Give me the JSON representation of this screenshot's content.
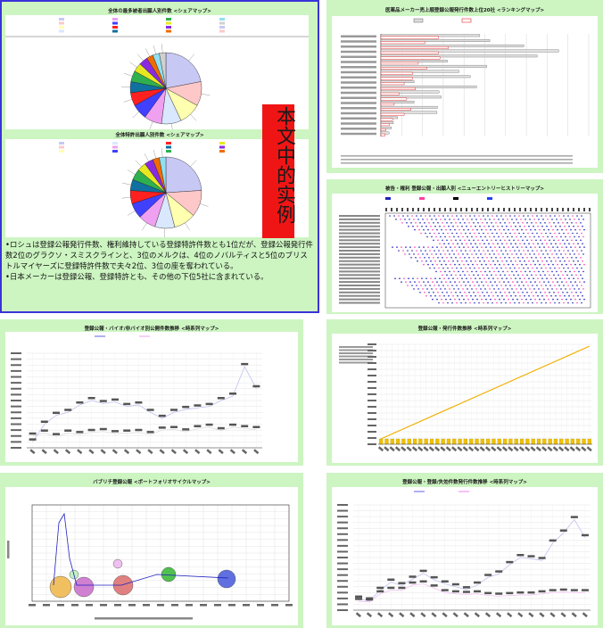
{
  "panels": {
    "p1": {
      "title1": "全体の最多被者出願人別件数 <シェアマップ>",
      "title2": "全体特許出願人別件数 <シェアマップ>",
      "overlay": "本文中的实例",
      "text": "•ロシュは登録公報発行件数、権利維持している登録特許件数とも1位だが、登録公報発行件数2位のグラクソ・スミスクラインと、3位のメルクは、4位のノバルティスと5位のブリストルマイヤーズに登録特許件数で夫々2位、3位の座を奪われている。\n•日本メーカーは登録公報、登録特許とも、その他の下位5社に含まれている。"
    },
    "p2": {
      "title": "医薬品メーカー売上順登録公報発行件数上位20社 <ランキングマップ>",
      "legend": [
        "合計",
        "権利維持"
      ]
    },
    "p3": {
      "title": "被告・権利 登録公報・出願人別 <ニューエントリーヒストリーマップ>"
    },
    "p4": {
      "title": "登録公報・バイオ/非バイオ別公開件数推移 <時系列マップ>",
      "legend": [
        "バイオ",
        "非バイオ"
      ],
      "ylabel": "件数",
      "xlabel": "発行年"
    },
    "p5": {
      "title": "登録公報・発行件数推移 <時系列マップ>"
    },
    "p6": {
      "title": "バブリチ登録公報 <ポートフォリオサイクルマップ>",
      "ylabel": "件数",
      "xlabel": "出願件数"
    },
    "p7": {
      "title": "登録公報・登録/失効件数発行件数推移 <時系列マップ>",
      "legend": [
        "全体",
        "失効件数"
      ]
    }
  },
  "chart_data": [
    {
      "type": "pie",
      "title": "全体の最多被者出願人別件数 <シェアマップ>",
      "values": [
        22,
        11,
        10,
        9,
        8,
        7,
        6,
        5,
        5,
        4,
        4,
        3,
        3,
        3
      ]
    },
    {
      "type": "pie",
      "title": "全体特許出願人別件数 <シェアマップ>",
      "values": [
        24,
        12,
        10,
        9,
        8,
        7,
        6,
        5,
        5,
        4,
        4,
        3,
        3
      ]
    },
    {
      "type": "bar",
      "title": "医薬品メーカー売上順登録公報発行件数上位20社 <ランキングマップ>",
      "series": [
        {
          "name": "合計",
          "values": [
            2380,
            2620,
            3440,
            4280,
            3760,
            1600,
            2550,
            1880,
            2150,
            800,
            2300,
            1400,
            1450,
            800,
            1360,
            1350,
            400,
            300,
            250,
            200
          ]
        },
        {
          "name": "権利維持",
          "values": [
            1390,
            1060,
            1620,
            1380,
            1420,
            900,
            1100,
            760,
            760,
            560,
            830,
            440,
            620,
            320,
            720,
            560,
            280,
            200,
            120,
            100
          ]
        }
      ],
      "xlim": [
        0,
        5000
      ]
    },
    {
      "type": "scatter",
      "title": "被告・権利 登録公報・出願人別 <ニューエントリーヒストリーマップ>"
    },
    {
      "type": "line",
      "title": "登録公報・バイオ/非バイオ別公開件数推移 <時系列マップ>",
      "series": [
        {
          "name": "バイオ",
          "values": [
            400,
            500,
            380,
            500,
            450,
            520,
            550,
            480,
            500,
            520,
            450,
            600,
            620,
            540,
            650,
            700,
            580,
            700,
            650,
            620
          ]
        },
        {
          "name": "非バイオ",
          "values": [
            200,
            800,
            1100,
            1200,
            1450,
            1600,
            1500,
            1550,
            1400,
            1450,
            1200,
            1000,
            1200,
            1300,
            1350,
            1400,
            1600,
            1750,
            2750,
            2000
          ]
        }
      ],
      "ylim": [
        0,
        3200
      ]
    },
    {
      "type": "bar",
      "title": "登録公報・発行件数推移 <時系列マップ>"
    },
    {
      "type": "scatter",
      "title": "バブリチ登録公報 <ポートフォリオサイクルマップ>",
      "xlim": [
        -200,
        3400
      ],
      "ylim": [
        0,
        1400
      ]
    },
    {
      "type": "line",
      "title": "登録公報・登録/失効件数発行件数推移 <時系列マップ>",
      "series": [
        {
          "name": "全体",
          "values": [
            190,
            160,
            340,
            480,
            420,
            530,
            630,
            520,
            450,
            400,
            350,
            430,
            560,
            620,
            780,
            900,
            880,
            850,
            1150,
            1320,
            1550,
            1240
          ]
        },
        {
          "name": "失効件数",
          "values": [
            150,
            140,
            280,
            340,
            340,
            430,
            450,
            380,
            300,
            280,
            270,
            280,
            250,
            240,
            250,
            260,
            260,
            280,
            300,
            310,
            300,
            300
          ]
        }
      ],
      "ylim": [
        0,
        1800
      ]
    }
  ]
}
